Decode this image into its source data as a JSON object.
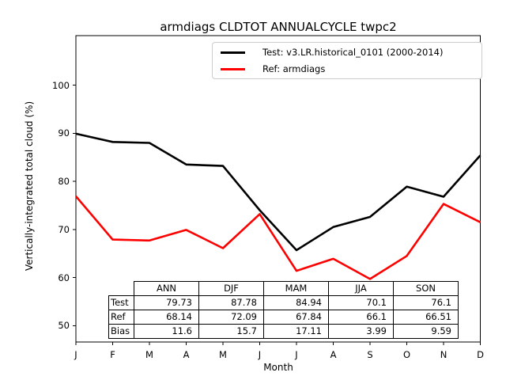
{
  "title": "armdiags CLDTOT ANNUALCYCLE twpc2",
  "chart_data": {
    "type": "line",
    "title": "armdiags CLDTOT ANNUALCYCLE twpc2",
    "xlabel": "Month",
    "ylabel": "Vertically-integrated total cloud (%)",
    "x_categories": [
      "J",
      "F",
      "M",
      "A",
      "M",
      "J",
      "J",
      "A",
      "S",
      "O",
      "N",
      "D"
    ],
    "yticks": [
      50,
      60,
      70,
      80,
      90,
      100
    ],
    "ylim": [
      46.6,
      110.3
    ],
    "grid": false,
    "legend_position": "upper right inside",
    "series": [
      {
        "name": "Test: v3.LR.historical_0101 (2000-2014)",
        "color": "#000000",
        "values": [
          89.9,
          88.2,
          88.0,
          83.5,
          83.2,
          74.0,
          65.7,
          70.5,
          72.6,
          78.9,
          76.8,
          85.4
        ]
      },
      {
        "name": "Ref: armdiags",
        "color": "#ff0000",
        "values": [
          76.9,
          67.9,
          67.7,
          69.9,
          66.1,
          73.2,
          61.4,
          63.9,
          59.7,
          64.5,
          75.3,
          71.5
        ]
      }
    ],
    "table": {
      "col_headers": [
        "ANN",
        "DJF",
        "MAM",
        "JJA",
        "SON"
      ],
      "rows": [
        {
          "label": "Test",
          "values": [
            "79.73",
            "87.78",
            "84.94",
            "70.1",
            "76.1"
          ]
        },
        {
          "label": "Ref",
          "values": [
            "68.14",
            "72.09",
            "67.84",
            "66.1",
            "66.51"
          ]
        },
        {
          "label": "Bias",
          "values": [
            "11.6",
            "15.7",
            "17.11",
            "3.99",
            "9.59"
          ]
        }
      ]
    }
  }
}
